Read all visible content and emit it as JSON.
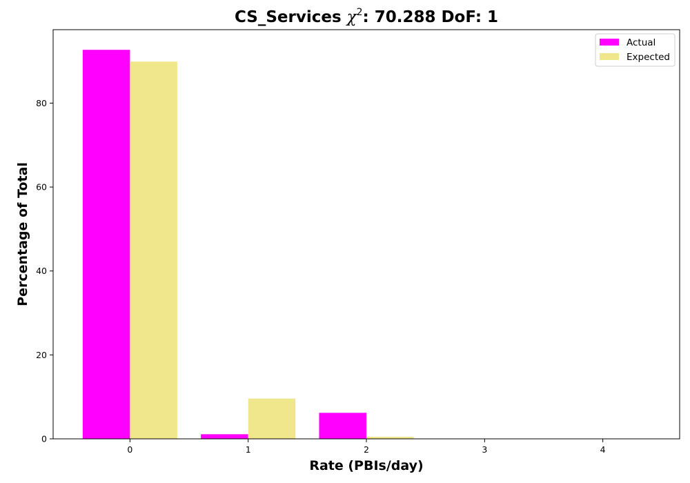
{
  "chart_data": {
    "type": "bar",
    "title_prefix": "CS_Services ",
    "title_chi": "χ",
    "title_sup": "2",
    "title_suffix": ": 70.288 DoF: 1",
    "xlabel": "Rate (PBIs/day)",
    "ylabel": "Percentage of Total",
    "categories": [
      "0",
      "1",
      "2",
      "3",
      "4"
    ],
    "xlim": [
      -0.65,
      4.65
    ],
    "ylim": [
      0,
      97.5
    ],
    "yticks": [
      0,
      20,
      40,
      60,
      80
    ],
    "series": [
      {
        "name": "Actual",
        "color": "#ff00ff",
        "values": [
          92.7,
          1.1,
          6.2,
          0,
          0
        ]
      },
      {
        "name": "Expected",
        "color": "#f0e68c",
        "values": [
          89.9,
          9.6,
          0.5,
          0.0,
          0.0
        ]
      }
    ],
    "legend_position": "top-right",
    "grid": false
  }
}
